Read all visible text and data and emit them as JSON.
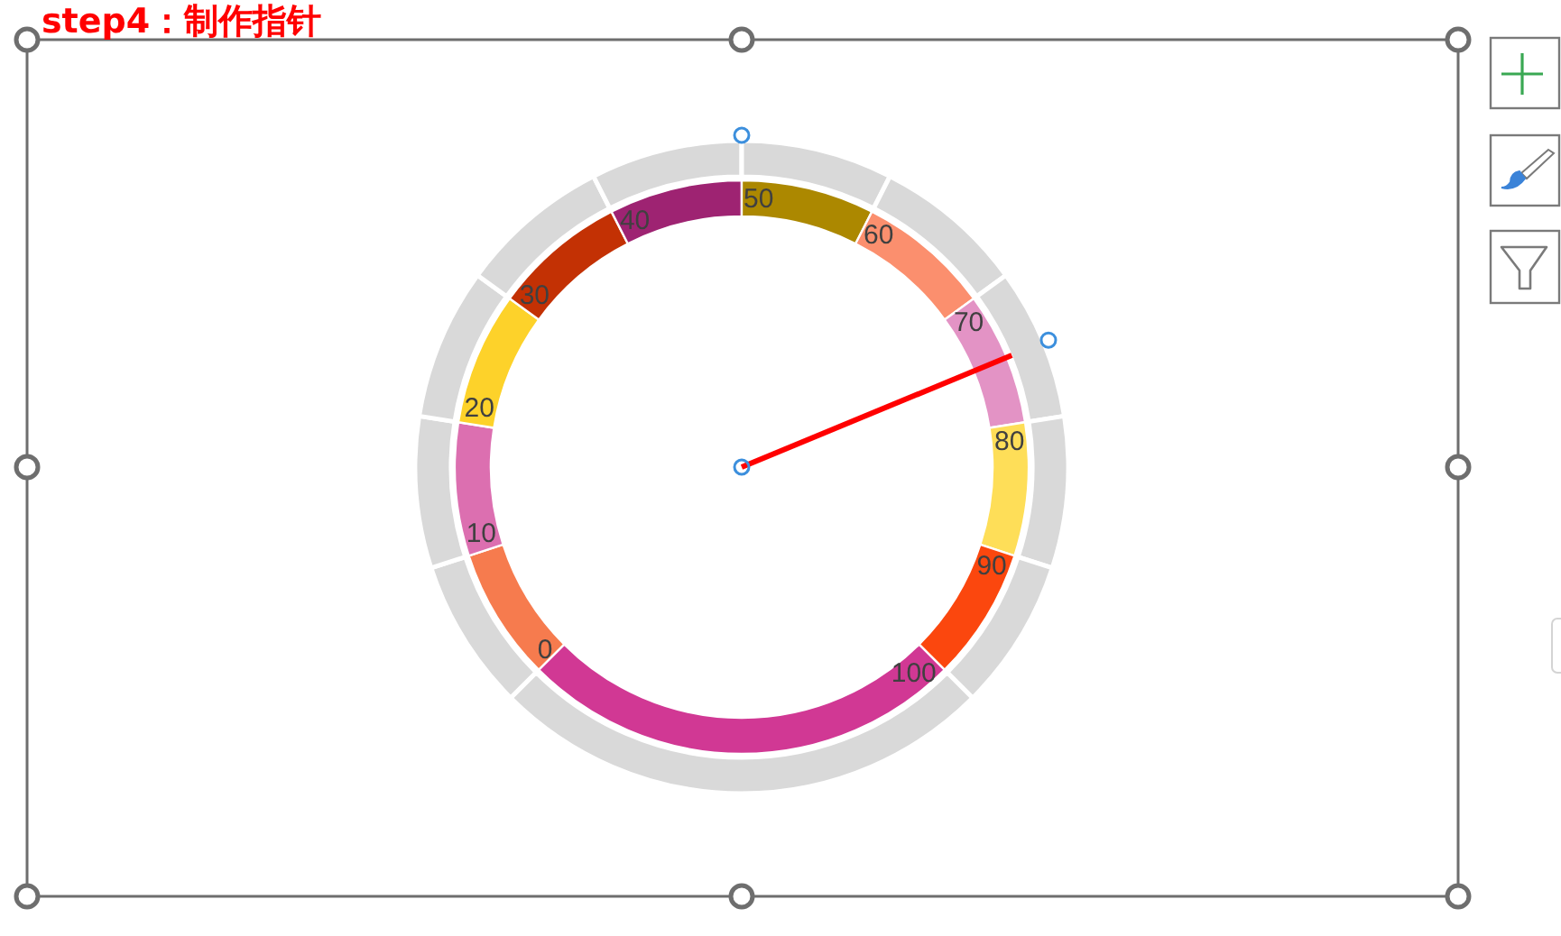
{
  "chart_data": [
    {
      "type": "donut",
      "title": "step4：制作指针",
      "categories": [
        "0",
        "10",
        "20",
        "30",
        "40",
        "50",
        "60",
        "70",
        "80",
        "90",
        "100"
      ],
      "values": [
        7.5,
        7.5,
        7.5,
        7.5,
        7.5,
        7.5,
        7.5,
        7.5,
        7.5,
        7.5,
        25
      ],
      "colors": [
        "#f67b4e",
        "#dc6fb0",
        "#fdd22a",
        "#c33104",
        "#9e2372",
        "#ac8800",
        "#fb8f6e",
        "#e393c5",
        "#fede58",
        "#fb470e",
        "#d13894"
      ],
      "needle": "70"
    },
    {
      "type": "donut",
      "values": [
        7.5,
        7.5,
        7.5,
        7.5,
        7.5,
        7.5,
        7.5,
        7.5,
        7.5,
        7.5,
        25
      ],
      "colors": [
        "#d9d9d9",
        "#d9d9d9",
        "#d9d9d9",
        "#d9d9d9",
        "#d9d9d9",
        "#d9d9d9",
        "#d9d9d9",
        "#d9d9d9",
        "#d9d9d9",
        "#d9d9d9",
        "#d9d9d9"
      ]
    }
  ]
}
